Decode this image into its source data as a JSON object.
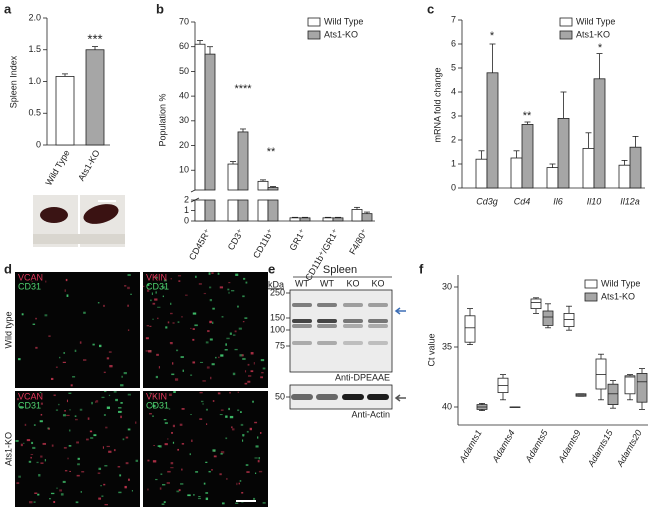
{
  "chart_data": [
    {
      "type": "bar",
      "panel": "a",
      "ylabel": "Spleen Index",
      "categories": [
        "Wild Type",
        "Ats1-KO"
      ],
      "values": [
        1.08,
        1.5
      ],
      "errors": [
        0.04,
        0.05
      ],
      "colors": [
        "#ffffff",
        "#a6a6a6"
      ],
      "ylim": [
        0,
        2
      ],
      "yticks": [
        0,
        0.5,
        {
          "value": 1,
          "label": "1.0"
        },
        1.5,
        {
          "value": 2,
          "label": "2.0"
        }
      ],
      "annotations": [
        "***"
      ]
    },
    {
      "type": "broken_bar",
      "panel": "b",
      "ylabel": "Population %",
      "categories": [
        "CD45R⁺",
        "CD3⁺",
        "CD11b⁺",
        "GR1⁺",
        "CD11b⁺/GR1⁺",
        "F4/80⁺"
      ],
      "series": [
        {
          "name": "Wild Type",
          "color": "#ffffff",
          "values": [
            61,
            12.5,
            5.5,
            0.3,
            0.3,
            1.1
          ],
          "errors": [
            1.5,
            1,
            0.6,
            0.05,
            0.05,
            0.2
          ]
        },
        {
          "name": "Ats1-KO",
          "color": "#a6a6a6",
          "values": [
            57,
            25.5,
            3,
            0.3,
            0.3,
            0.7
          ],
          "errors": [
            3,
            1.2,
            0.4,
            0.05,
            0.05,
            0.15
          ]
        }
      ],
      "ylim_lower": [
        0,
        2
      ],
      "yticks_lower": [
        0,
        1,
        2
      ],
      "ylim_upper": [
        2,
        70
      ],
      "yticks_upper": [
        10,
        20,
        30,
        40,
        50,
        60,
        70
      ],
      "annotations": [
        "****",
        "**"
      ]
    },
    {
      "type": "grouped_bar",
      "panel": "c",
      "ylabel": "mRNA fold change",
      "categories": [
        "Cd3g",
        "Cd4",
        "Il6",
        "Il10",
        "Il12a"
      ],
      "series": [
        {
          "name": "Wild Type",
          "color": "#ffffff",
          "values": [
            1.2,
            1.25,
            0.85,
            1.65,
            0.95
          ],
          "errors": [
            0.35,
            0.3,
            0.15,
            0.65,
            0.2
          ]
        },
        {
          "name": "Ats1-KO",
          "color": "#a6a6a6",
          "values": [
            4.8,
            2.65,
            2.9,
            4.55,
            1.7
          ],
          "errors": [
            1.2,
            0.1,
            1.1,
            1.05,
            0.45
          ]
        }
      ],
      "ylim": [
        0,
        7
      ],
      "yticks": [
        0,
        1,
        2,
        3,
        4,
        5,
        6,
        7
      ],
      "annotations": [
        "*",
        "**",
        "*"
      ]
    },
    {
      "type": "box",
      "panel": "f",
      "ylabel": "Ct value",
      "categories": [
        "Adamts1",
        "Adamts4",
        "Adamts5",
        "Adamts9",
        "Adamts15",
        "Adamts20"
      ],
      "series": [
        {
          "name": "Wild Type",
          "color": "#ffffff",
          "stats": [
            [
              31.8,
              32.4,
              33.4,
              34.6,
              34.8
            ],
            [
              37.3,
              37.6,
              38.2,
              38.8,
              39.4
            ],
            [
              30.9,
              31,
              31.3,
              31.8,
              32.2
            ],
            [
              31.6,
              32.2,
              32.7,
              33.3,
              33.6
            ],
            [
              35.6,
              36,
              37.3,
              38.5,
              39.4
            ],
            [
              37.3,
              37.4,
              37.5,
              38.9,
              39.4
            ]
          ]
        },
        {
          "name": "Ats1-KO",
          "color": "#a6a6a6",
          "stats": [
            [
              39.7,
              39.8,
              40,
              40.2,
              40.3
            ],
            [
              40,
              40,
              40,
              40,
              40
            ],
            [
              31.4,
              32,
              32.5,
              33.2,
              33.4
            ],
            [
              38.9,
              38.9,
              39,
              39.1,
              39.1
            ],
            [
              37.8,
              38.1,
              38.9,
              39.8,
              40.1
            ],
            [
              36.8,
              37.2,
              37.9,
              39.6,
              40.2
            ]
          ]
        }
      ],
      "ylim": [
        41.5,
        29
      ],
      "yticks": [
        30,
        35,
        40
      ]
    }
  ],
  "microscopy": {
    "panel": "d",
    "rows": [
      "Wild type",
      "Ats1-KO"
    ],
    "images": [
      [
        "VCAN",
        "CD31"
      ],
      [
        "VKIN",
        "CD31"
      ],
      [
        "VCAN",
        "CD31"
      ],
      [
        "VKIN",
        "CD31"
      ]
    ]
  },
  "western_blot": {
    "panel": "e",
    "title": "Spleen",
    "lanes": [
      "WT",
      "WT",
      "KO",
      "KO"
    ],
    "unit": "kDa",
    "markers": [
      250,
      150,
      100,
      75
    ],
    "antibody": "Anti-DPEAAE",
    "loading_markers": [
      50
    ],
    "loading_antibody": "Anti-Actin"
  }
}
